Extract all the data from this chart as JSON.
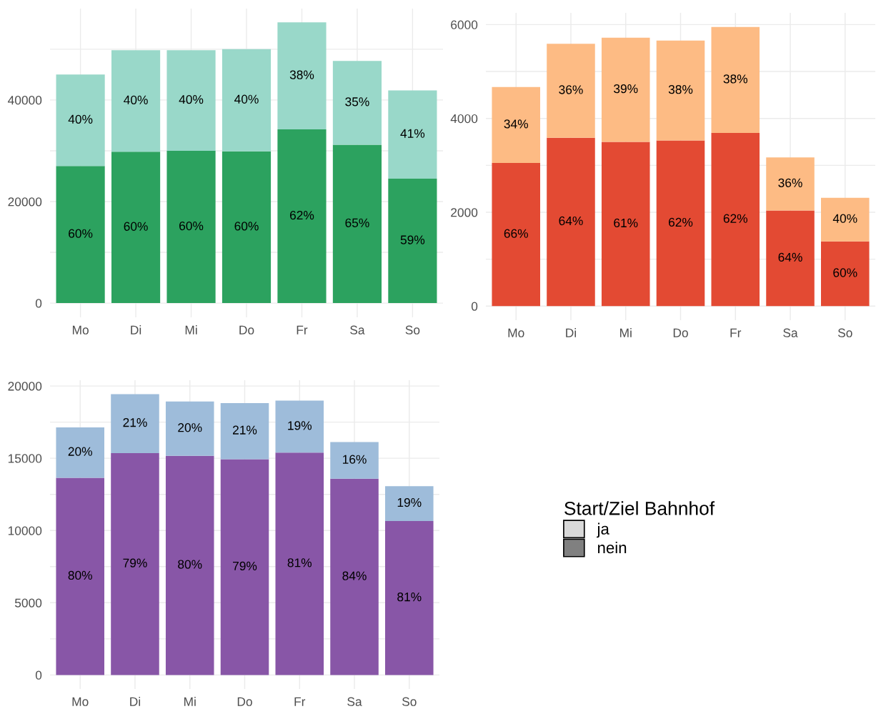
{
  "chart_data": [
    {
      "type": "bar",
      "stacked": true,
      "grid": true,
      "categories": [
        "Mo",
        "Di",
        "Mi",
        "Do",
        "Fr",
        "Sa",
        "So"
      ],
      "ylim": [
        -2800,
        58000
      ],
      "yticks": [
        0,
        {
          "value": 10000,
          "label": null
        },
        20000,
        {
          "value": 30000,
          "label": null
        },
        40000,
        {
          "value": 50000,
          "label": null
        }
      ],
      "series": [
        {
          "color": "#2ca25f",
          "values": [
            27000,
            29800,
            30000,
            29900,
            34200,
            31200,
            24500
          ]
        },
        {
          "color": "#99d8c9",
          "values": [
            18000,
            20000,
            19800,
            20100,
            21100,
            16500,
            17400
          ]
        }
      ],
      "annotations": [
        "60%",
        "60%",
        "60%",
        "60%",
        "62%",
        "65%",
        "59%",
        "40%",
        "40%",
        "40%",
        "40%",
        "38%",
        "35%",
        "41%"
      ]
    },
    {
      "type": "bar",
      "stacked": true,
      "grid": true,
      "categories": [
        "Mo",
        "Di",
        "Mi",
        "Do",
        "Fr",
        "Sa",
        "So"
      ],
      "ylim": [
        -300,
        6250
      ],
      "yticks": [
        0,
        {
          "value": 1000,
          "label": null
        },
        2000,
        {
          "value": 3000,
          "label": null
        },
        4000,
        {
          "value": 5000,
          "label": null
        },
        6000
      ],
      "series": [
        {
          "color": "#e34a33",
          "values": [
            3050,
            3590,
            3500,
            3530,
            3690,
            2040,
            1380
          ]
        },
        {
          "color": "#fdbb84",
          "values": [
            1620,
            2000,
            2220,
            2130,
            2260,
            1130,
            930
          ]
        }
      ],
      "annotations": [
        "66%",
        "64%",
        "61%",
        "62%",
        "62%",
        "64%",
        "60%",
        "34%",
        "36%",
        "39%",
        "38%",
        "38%",
        "36%",
        "40%"
      ]
    },
    {
      "type": "bar",
      "stacked": true,
      "grid": true,
      "categories": [
        "Mo",
        "Di",
        "Mi",
        "Do",
        "Fr",
        "Sa",
        "So"
      ],
      "ylim": [
        -970,
        20400
      ],
      "yticks": [
        0,
        {
          "value": 2500,
          "label": null
        },
        5000,
        {
          "value": 7500,
          "label": null
        },
        10000,
        {
          "value": 12500,
          "label": null
        },
        15000,
        {
          "value": 17500,
          "label": null
        },
        20000
      ],
      "series": [
        {
          "color": "#8856a7",
          "values": [
            13650,
            15360,
            15170,
            14940,
            15390,
            13580,
            10660
          ]
        },
        {
          "color": "#9ebcda",
          "values": [
            3490,
            4080,
            3760,
            3880,
            3600,
            2540,
            2410
          ]
        }
      ],
      "annotations": [
        "80%",
        "79%",
        "80%",
        "79%",
        "81%",
        "84%",
        "81%",
        "20%",
        "21%",
        "20%",
        "21%",
        "19%",
        "16%",
        "19%"
      ]
    },
    {
      "type": "other",
      "legend_title": "Start/Ziel Bahnhof",
      "series": [
        {
          "name": "ja",
          "color": "#d9d9d9"
        },
        {
          "name": "nein",
          "color": "#808080"
        }
      ]
    }
  ]
}
